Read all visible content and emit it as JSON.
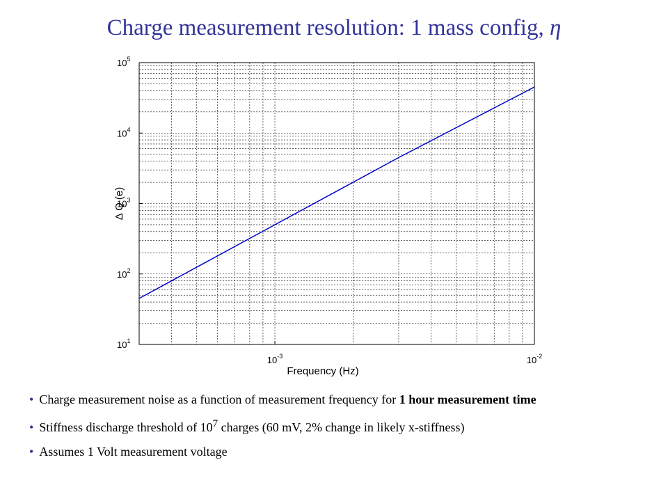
{
  "title": {
    "text": "Charge measurement resolution: 1 mass config,",
    "symbol": "η"
  },
  "chart_data": {
    "type": "line",
    "xscale": "log",
    "yscale": "log",
    "xlim": [
      0.0003,
      0.01
    ],
    "ylim": [
      10,
      100000
    ],
    "grid": true,
    "xlabel": "Frequency (Hz)",
    "ylabel": "Δ Q (e)",
    "x_ticks": [
      {
        "base": "10",
        "exp": "-3",
        "value": 0.001
      },
      {
        "base": "10",
        "exp": "-2",
        "value": 0.01
      }
    ],
    "y_ticks": [
      {
        "base": "10",
        "exp": "1",
        "value": 10
      },
      {
        "base": "10",
        "exp": "2",
        "value": 100
      },
      {
        "base": "10",
        "exp": "3",
        "value": 1000
      },
      {
        "base": "10",
        "exp": "4",
        "value": 10000
      },
      {
        "base": "10",
        "exp": "5",
        "value": 100000
      }
    ],
    "series": [
      {
        "color": "#0000cc",
        "x": [
          0.0003,
          0.001,
          0.003,
          0.01
        ],
        "y": [
          45,
          500,
          4500,
          45000
        ]
      }
    ]
  },
  "bullets": [
    {
      "text": "Charge measurement noise as a function of measurement frequency for ",
      "bold": "1 hour measurement time"
    },
    {
      "text": "Stiffness discharge threshold of 10",
      "sup": "7",
      "text2": " charges (60 mV, 2% change in likely x-stiffness)"
    },
    {
      "text": "Assumes 1 Volt measurement voltage"
    }
  ],
  "colors": {
    "title": "#33339a",
    "bullet": "#33339a",
    "line": "#0000cc"
  }
}
